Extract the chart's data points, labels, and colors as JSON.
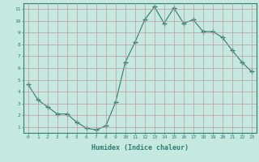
{
  "xlabel": "Humidex (Indice chaleur)",
  "x": [
    0,
    1,
    2,
    3,
    4,
    5,
    6,
    7,
    8,
    9,
    10,
    11,
    12,
    13,
    14,
    15,
    16,
    17,
    18,
    19,
    20,
    21,
    22,
    23
  ],
  "y": [
    4.6,
    3.3,
    2.7,
    2.1,
    2.1,
    1.4,
    0.9,
    0.75,
    1.1,
    3.1,
    6.5,
    8.2,
    10.1,
    11.2,
    9.8,
    11.1,
    9.8,
    10.1,
    9.1,
    9.1,
    8.6,
    7.5,
    6.5,
    5.7
  ],
  "line_color": "#2e7d6e",
  "marker": "+",
  "marker_size": 4,
  "bg_color": "#c5e8e0",
  "grid_color": "#c09898",
  "tick_label_color": "#2e7d6e",
  "axis_label_color": "#2e7d6e",
  "xlim": [
    -0.5,
    23.5
  ],
  "ylim": [
    0.5,
    11.5
  ],
  "yticks": [
    1,
    2,
    3,
    4,
    5,
    6,
    7,
    8,
    9,
    10,
    11
  ],
  "xticks": [
    0,
    1,
    2,
    3,
    4,
    5,
    6,
    7,
    8,
    9,
    10,
    11,
    12,
    13,
    14,
    15,
    16,
    17,
    18,
    19,
    20,
    21,
    22,
    23
  ]
}
